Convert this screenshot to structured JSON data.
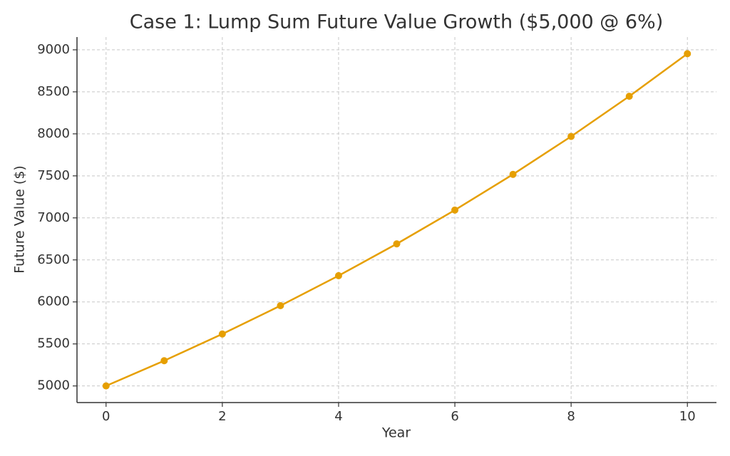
{
  "chart_data": {
    "type": "line",
    "title": "Case 1: Lump Sum Future Value Growth ($5,000 @ 6%)",
    "x_label": "Year",
    "y_label": "Future Value ($)",
    "x": [
      0,
      1,
      2,
      3,
      4,
      5,
      6,
      7,
      8,
      9,
      10
    ],
    "series": [
      {
        "name": "Future Value",
        "color": "#e69f00",
        "values": [
          5000,
          5300,
          5618,
          5955,
          6312,
          6691,
          7093,
          7518,
          7969,
          8447,
          8954
        ]
      }
    ],
    "xlim": [
      -0.5,
      10.5
    ],
    "xticks": [
      0,
      2,
      4,
      6,
      8,
      10
    ],
    "ylim": [
      4802,
      9152
    ],
    "yticks": [
      5000,
      5500,
      6000,
      6500,
      7000,
      7500,
      8000,
      8500,
      9000
    ],
    "grid": true
  }
}
